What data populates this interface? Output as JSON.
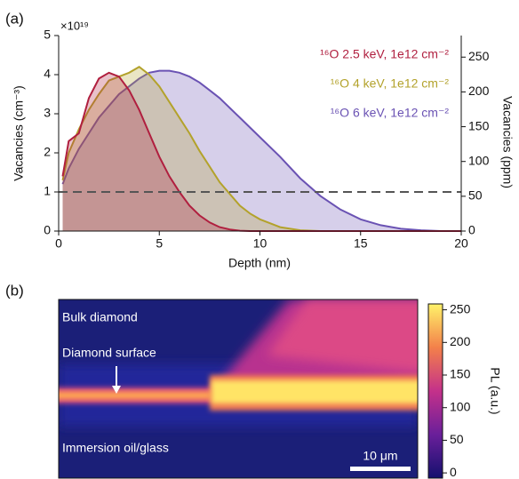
{
  "chart_data": [
    {
      "type": "area",
      "panel": "(a)",
      "multiplier": "×10¹⁹",
      "x_label": "Depth (nm)",
      "y_label": "Vacancies (cm⁻³)",
      "y2_label": "Vacancies (ppm)",
      "x": [
        0.2,
        0.5,
        1,
        1.5,
        2,
        2.5,
        3,
        3.5,
        4,
        4.5,
        5,
        5.5,
        6,
        6.5,
        7,
        7.5,
        8,
        8.5,
        9,
        9.5,
        10,
        11,
        12,
        13,
        14,
        15,
        16,
        17,
        18,
        19,
        20
      ],
      "series": [
        {
          "name": "¹⁶O 6 keV, 1e12 cm⁻²",
          "color": "#6a52b3",
          "values": [
            1.2,
            1.6,
            2.1,
            2.5,
            2.9,
            3.2,
            3.5,
            3.7,
            3.9,
            4.05,
            4.1,
            4.1,
            4.05,
            3.95,
            3.8,
            3.6,
            3.4,
            3.15,
            2.9,
            2.65,
            2.4,
            1.9,
            1.35,
            0.9,
            0.55,
            0.3,
            0.15,
            0.06,
            0.02,
            0,
            0
          ]
        },
        {
          "name": "¹⁶O 4 keV, 1e12 cm⁻²",
          "color": "#b3a22b",
          "values": [
            1.3,
            2.0,
            2.6,
            3.1,
            3.5,
            3.85,
            3.95,
            4.05,
            4.2,
            4.0,
            3.7,
            3.3,
            2.9,
            2.5,
            2.05,
            1.65,
            1.25,
            0.95,
            0.65,
            0.45,
            0.3,
            0.1,
            0.02,
            0,
            0,
            0,
            0,
            0,
            0,
            0,
            0
          ]
        },
        {
          "name": "¹⁶O 2.5 keV, 1e12 cm⁻²",
          "color": "#b01f3f",
          "values": [
            1.4,
            2.3,
            2.5,
            3.4,
            3.9,
            4.05,
            3.95,
            3.6,
            3.1,
            2.5,
            1.9,
            1.4,
            1.0,
            0.65,
            0.4,
            0.22,
            0.1,
            0.04,
            0.01,
            0,
            0,
            0,
            0,
            0,
            0,
            0,
            0,
            0,
            0,
            0,
            0
          ]
        }
      ],
      "reference_line": 1,
      "xlim": [
        0,
        20
      ],
      "xticks": [
        0,
        5,
        10,
        15,
        20
      ],
      "ylim": [
        0,
        5
      ],
      "yticks": [
        0,
        1,
        2,
        3,
        4,
        5
      ],
      "y2lim": [
        0,
        281
      ],
      "y2ticks": [
        0,
        50,
        100,
        150,
        200,
        250
      ]
    },
    {
      "type": "heatmap",
      "panel": "(b)",
      "annotations": [
        "Bulk diamond",
        "Diamond surface",
        "Immersion oil/glass"
      ],
      "scale_bar": "10 μm",
      "colorbar_label": "PL (a.u.)",
      "clim": [
        -8,
        259
      ],
      "cticks": [
        0,
        50,
        100,
        150,
        200,
        250
      ]
    }
  ]
}
